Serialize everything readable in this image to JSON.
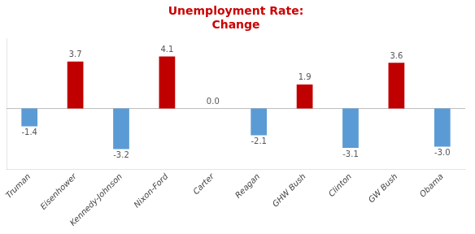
{
  "chart_data": {
    "type": "bar",
    "title": "Unemployment Rate:\nChange",
    "categories": [
      "Truman",
      "Eisenhower",
      "Kennedy-Johnson",
      "Nixon-Ford",
      "Carter",
      "Reagan",
      "GHW Bush",
      "Clinton",
      "GW Bush",
      "Obama"
    ],
    "values": [
      -1.4,
      3.7,
      -3.2,
      4.1,
      0.0,
      -2.1,
      1.9,
      -3.1,
      3.6,
      -3.0
    ],
    "value_labels": [
      "-1.4",
      "3.7",
      "-3.2",
      "4.1",
      "0.0",
      "-2.1",
      "1.9",
      "-3.1",
      "3.6",
      "-3.0"
    ],
    "colors": [
      "#5B9BD5",
      "#C00000",
      "#5B9BD5",
      "#C00000",
      "#5B9BD5",
      "#5B9BD5",
      "#C00000",
      "#5B9BD5",
      "#C00000",
      "#5B9BD5"
    ],
    "ylim": [
      -4.8,
      5.5
    ],
    "grid": false,
    "data_labels": true,
    "tick_labels": "x"
  }
}
